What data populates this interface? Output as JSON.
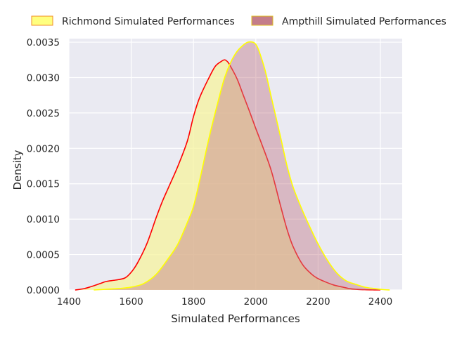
{
  "chart_data": {
    "type": "area",
    "xlabel": "Simulated Performances",
    "ylabel": "Density",
    "xlim": [
      1400,
      2470
    ],
    "ylim": [
      0,
      0.00355
    ],
    "x_ticks": [
      1400,
      1600,
      1800,
      2000,
      2200,
      2400
    ],
    "x_tick_labels": [
      "1400",
      "1600",
      "1800",
      "2000",
      "2200",
      "2400"
    ],
    "y_ticks": [
      0,
      0.0005,
      0.001,
      0.0015,
      0.002,
      0.0025,
      0.003,
      0.0035
    ],
    "y_tick_labels": [
      "0.0000",
      "0.0005",
      "0.0010",
      "0.0015",
      "0.0020",
      "0.0025",
      "0.0030",
      "0.0035"
    ],
    "grid": true,
    "legend_position": "top",
    "background": "#eaeaf2",
    "series": [
      {
        "name": "Richmond Simulated Performances",
        "fill": "#f5f39e",
        "fill_opacity": 0.75,
        "stroke": "#ff0000",
        "legend_fill": "#ffff7f",
        "legend_edge": "#f28c28",
        "x": [
          1420,
          1450,
          1480,
          1500,
          1520,
          1550,
          1580,
          1600,
          1620,
          1650,
          1680,
          1700,
          1720,
          1750,
          1780,
          1800,
          1820,
          1850,
          1870,
          1890,
          1900,
          1910,
          1920,
          1940,
          1960,
          1980,
          2000,
          2020,
          2050,
          2080,
          2100,
          2120,
          2150,
          2180,
          2200,
          2220,
          2250,
          2280,
          2300,
          2320,
          2350,
          2380,
          2400
        ],
        "values": [
          0.0,
          2e-05,
          6e-05,
          9e-05,
          0.00012,
          0.00014,
          0.00017,
          0.00025,
          0.00038,
          0.00065,
          0.00102,
          0.00125,
          0.00145,
          0.00175,
          0.0021,
          0.00245,
          0.00272,
          0.003,
          0.00316,
          0.00323,
          0.00325,
          0.00322,
          0.00315,
          0.00298,
          0.00275,
          0.00252,
          0.00228,
          0.00205,
          0.00168,
          0.00118,
          0.00086,
          0.00061,
          0.00036,
          0.00022,
          0.00016,
          0.00012,
          7e-05,
          4e-05,
          2e-05,
          1e-05,
          4e-06,
          1e-06,
          0.0
        ]
      },
      {
        "name": "Ampthill Simulated Performances",
        "fill": "#c47d8a",
        "fill_opacity": 0.45,
        "stroke": "#ffff00",
        "legend_fill": "#c47d8a",
        "legend_edge": "#e0c020",
        "x": [
          1480,
          1520,
          1560,
          1600,
          1640,
          1680,
          1720,
          1750,
          1780,
          1800,
          1820,
          1850,
          1880,
          1900,
          1920,
          1940,
          1960,
          1975,
          1990,
          2000,
          2010,
          2030,
          2050,
          2080,
          2100,
          2120,
          2150,
          2180,
          2200,
          2230,
          2260,
          2290,
          2320,
          2350,
          2380,
          2410,
          2430
        ],
        "values": [
          0.0,
          1e-05,
          2e-05,
          4e-05,
          9e-05,
          0.00022,
          0.00045,
          0.00065,
          0.00095,
          0.00118,
          0.00155,
          0.00215,
          0.00268,
          0.003,
          0.00322,
          0.00337,
          0.00346,
          0.0035,
          0.0035,
          0.00347,
          0.00338,
          0.0031,
          0.00272,
          0.00215,
          0.00176,
          0.00145,
          0.00112,
          0.00083,
          0.00065,
          0.00042,
          0.00024,
          0.00013,
          8e-05,
          4e-05,
          2e-05,
          5e-06,
          0.0
        ]
      }
    ]
  }
}
